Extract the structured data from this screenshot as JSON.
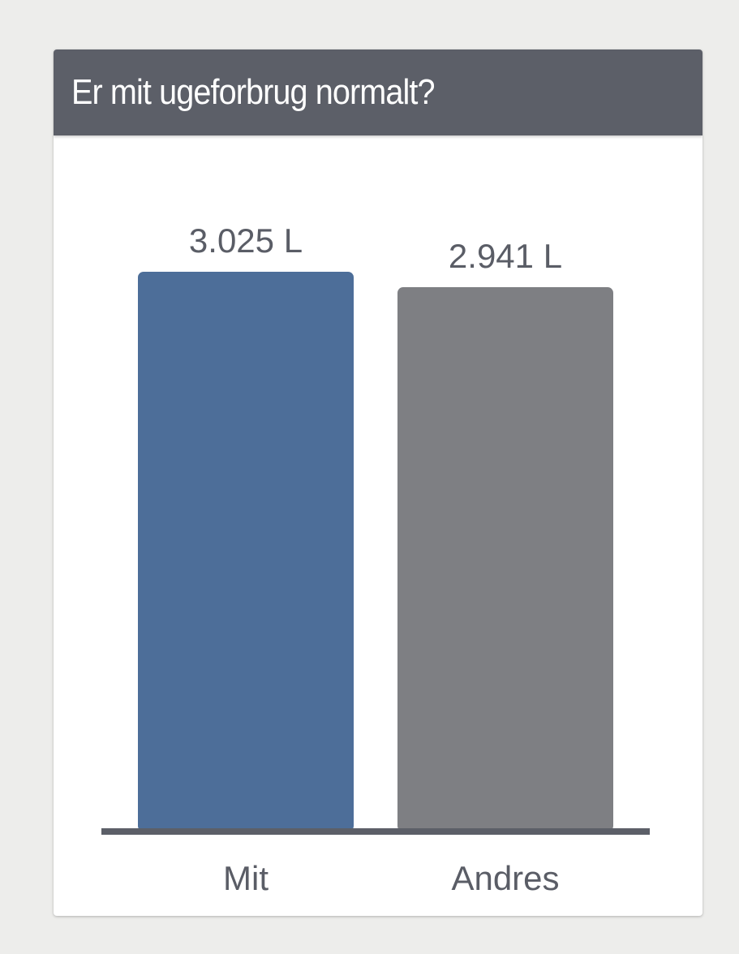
{
  "card": {
    "title": "Er mit ugeforbrug normalt?"
  },
  "colors": {
    "background": "#ededeb",
    "header": "#5c5f68",
    "mit_bar": "#4d6e99",
    "andres_bar": "#7e7f83",
    "baseline": "#5c5f68",
    "label_text": "#5a5d66"
  },
  "chart_data": {
    "type": "bar",
    "categories": [
      "Mit",
      "Andres"
    ],
    "values": [
      3.025,
      2.941
    ],
    "value_labels": [
      "3.025 L",
      "2.941 L"
    ],
    "unit": "L",
    "ylim": [
      0,
      3.025
    ],
    "grid": false,
    "legend": "none"
  }
}
